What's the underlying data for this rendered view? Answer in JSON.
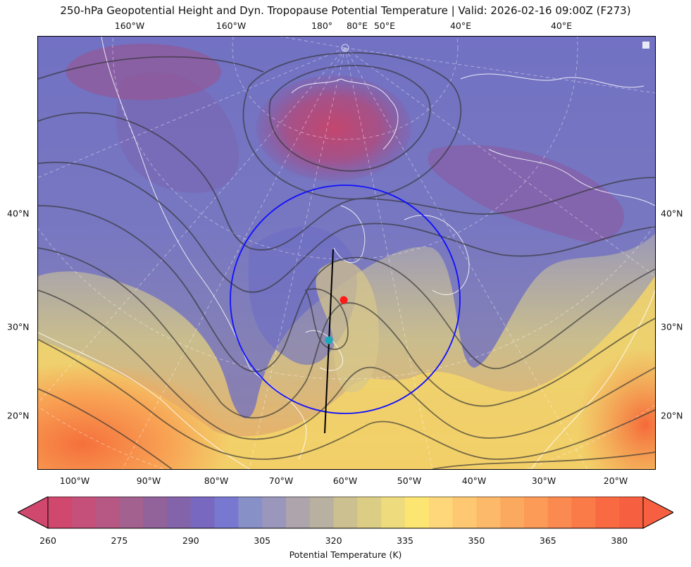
{
  "title": "250-hPa Geopotential Height and Dyn. Tropopause Potential Temperature   |  Valid: 2026-02-16 09:00Z (F273)",
  "top_lon_labels": [
    "160°W",
    "160°W",
    "180°",
    "80°E",
    "50°E",
    "40°E",
    "40°E"
  ],
  "bottom_lon_labels": [
    "100°W",
    "90°W",
    "80°W",
    "70°W",
    "60°W",
    "50°W",
    "40°W",
    "30°W",
    "20°W"
  ],
  "left_lat_labels": [
    "40°N",
    "30°N",
    "20°N"
  ],
  "right_lat_labels": [
    "40°N",
    "30°N",
    "20°N"
  ],
  "colorbar": {
    "label": "Potential Temperature (K)",
    "ticks": [
      "260",
      "275",
      "290",
      "305",
      "320",
      "335",
      "350",
      "365",
      "380"
    ],
    "min": 260,
    "max": 385,
    "step": 5,
    "colors": [
      "#d0486e",
      "#c55079",
      "#b65883",
      "#a3618f",
      "#92629b",
      "#8364aa",
      "#7868c0",
      "#7878d0",
      "#8890c8",
      "#9b96bb",
      "#ada4ac",
      "#b8b0a0",
      "#ccc090",
      "#dccd84",
      "#eedb7e",
      "#fde572",
      "#fed77a",
      "#fec872",
      "#fdb96a",
      "#fca960",
      "#fc9a58",
      "#fb8a50",
      "#fa7a48",
      "#f96a42",
      "#f66040"
    ],
    "extend": "both"
  },
  "map": {
    "projection": "polar stereographic (Northern Hemisphere)",
    "range_ring_color": "#1010ff",
    "markers": [
      {
        "name": "red-point",
        "color": "#ff1a1a"
      },
      {
        "name": "cyan-point",
        "color": "#1aa9b8"
      }
    ],
    "cross_section_line_color": "#000000"
  }
}
